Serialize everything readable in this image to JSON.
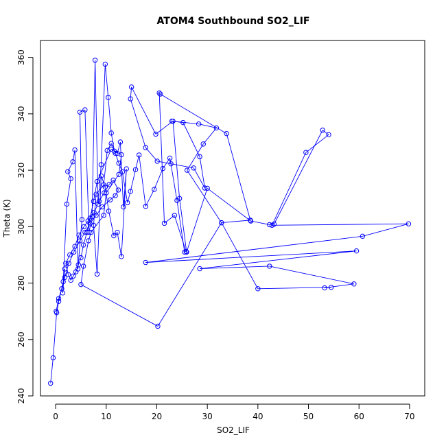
{
  "chart_data": {
    "type": "line",
    "title": "ATOM4 Southbound SO2_LIF",
    "xlabel": "SO2_LIF",
    "ylabel": "Theta (K)",
    "xlim": [
      -3,
      73
    ],
    "ylim": [
      240,
      366
    ],
    "xticks": [
      0,
      10,
      20,
      30,
      40,
      50,
      60,
      70
    ],
    "yticks": [
      240,
      260,
      280,
      300,
      320,
      340,
      360
    ],
    "grid": false,
    "marker": "open-circle",
    "line_color": "#0000ff",
    "series": [
      {
        "x": [
          -1,
          -0.5,
          0.2,
          0.6,
          1.5,
          1.8,
          1.4,
          2.2,
          3.0,
          2.4,
          3.4,
          3.8,
          4.4,
          5.2,
          4.8,
          5.8,
          6.6,
          7.2,
          7.8,
          8.4,
          9.0,
          9.8,
          10.4,
          11.0,
          11.6,
          12.2,
          12.8,
          13.4,
          14.0,
          13.0,
          12.2,
          11.5,
          10.5,
          9.8,
          9.0,
          8.2,
          7.5,
          8.0,
          9.5,
          10.2,
          11.0,
          11.8,
          12.5,
          13.2,
          14.2,
          14.8,
          15.8,
          16.5,
          17.8,
          19.5,
          21.2,
          22.6,
          24.0,
          25.5,
          25.8,
          23.5,
          21.5,
          20.5,
          20.7,
          33.8,
          38.5,
          32.8,
          26.0,
          29.2,
          31.8,
          28.3,
          23.0,
          25.2,
          28.5,
          29.5,
          27.3,
          22.8,
          20.1,
          17.8,
          14.8,
          15.0,
          19.8,
          23.2,
          24.5,
          25.9,
          30.0,
          38.6,
          42.3,
          43.2,
          52.8,
          54.0,
          49.5,
          42.8,
          69.8,
          60.7,
          17.8,
          59.5,
          28.5,
          42.3,
          59.0,
          53.2,
          54.5,
          40.0,
          32.8,
          20.2,
          5.0,
          5.5,
          6.5,
          7.0,
          9.5,
          10.0,
          12.5,
          13.0,
          11.0,
          8.2,
          7.5,
          6.8,
          6.2,
          5.5,
          5.0,
          4.5,
          4.0,
          3.5,
          3.0,
          2.5,
          2.0,
          2.8,
          3.8,
          4.6,
          5.6,
          6.4,
          7.6,
          8.6,
          9.6,
          10.6,
          11.4,
          12.4,
          11.8,
          10.8,
          9.2,
          8.0,
          6.8,
          5.8,
          4.8,
          3.6,
          2.6,
          1.8,
          1.2,
          0.6,
          0.1
        ],
        "y": [
          244.5,
          253.5,
          269.5,
          273.5,
          280.5,
          285.0,
          276.5,
          308.0,
          317.0,
          319.5,
          323.0,
          327.2,
          285.0,
          302.5,
          340.6,
          341.4,
          298.0,
          303.5,
          359.0,
          308.0,
          322.0,
          357.6,
          345.8,
          333.2,
          326.8,
          326.0,
          330.0,
          307.0,
          320.5,
          289.4,
          298.0,
          296.8,
          305.5,
          314.0,
          318.0,
          283.2,
          300.5,
          311.5,
          314.8,
          327.0,
          329.5,
          326.0,
          322.5,
          319.4,
          308.5,
          312.5,
          320.2,
          325.4,
          307.2,
          313.2,
          320.6,
          324.3,
          309.3,
          291.0,
          291.2,
          304.0,
          301.2,
          347.4,
          347.0,
          333.0,
          302.3,
          301.4,
          320.0,
          329.3,
          335.0,
          336.4,
          337.4,
          336.9,
          324.8,
          313.7,
          320.8,
          322.3,
          323.2,
          328.0,
          345.3,
          349.5,
          332.8,
          337.4,
          310.0,
          291.0,
          313.6,
          302.0,
          300.7,
          300.9,
          334.2,
          332.6,
          326.3,
          300.5,
          301.0,
          296.6,
          287.3,
          291.4,
          285.1,
          286.0,
          279.7,
          278.3,
          278.5,
          278.0,
          301.4,
          264.7,
          279.5,
          286.0,
          295.0,
          298.0,
          304.0,
          312.0,
          318.5,
          325.5,
          327.5,
          316.0,
          309.0,
          303.0,
          298.0,
          293.5,
          289.0,
          286.5,
          284.0,
          282.5,
          281.0,
          283.0,
          287.0,
          290.0,
          293.0,
          297.0,
          300.0,
          302.0,
          305.0,
          309.0,
          312.0,
          315.0,
          316.5,
          313.0,
          311.0,
          309.5,
          307.0,
          304.0,
          301.0,
          298.0,
          295.0,
          291.0,
          287.0,
          282.0,
          278.0,
          274.5,
          270.0
        ]
      }
    ]
  }
}
